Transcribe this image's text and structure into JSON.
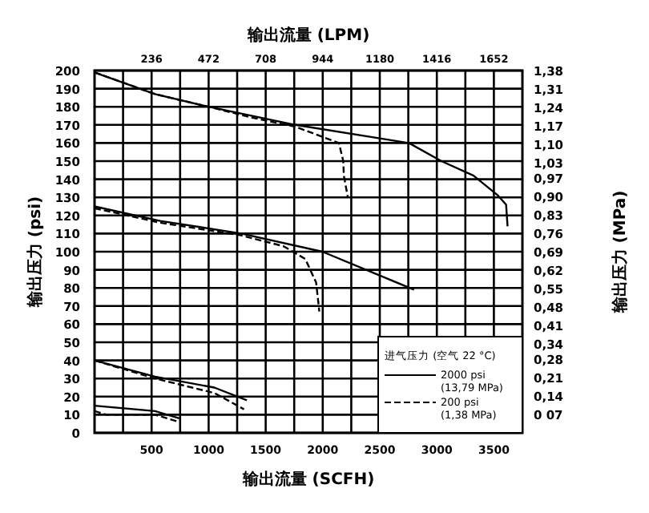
{
  "chart_data": {
    "type": "line",
    "xlabel": "输出流量 (SCFH)",
    "x2label": "输出流量 (LPM)",
    "ylabel": "输出压力 (psi)",
    "y2label": "输出压力 (MPa)",
    "legend_title": "进气压力 (空气 22 °C)",
    "legend": "bottom right",
    "grid": true,
    "xlim": [
      0,
      3750
    ],
    "xticks": [
      {
        "value": 250,
        "label": null
      },
      500,
      {
        "value": 750,
        "label": null
      },
      1000,
      {
        "value": 1250,
        "label": null
      },
      1500,
      {
        "value": 1750,
        "label": null
      },
      2000,
      {
        "value": 2250,
        "label": null
      },
      2500,
      {
        "value": 2750,
        "label": null
      },
      3000,
      {
        "value": 3250,
        "label": null
      },
      3500
    ],
    "x2lim": [
      0,
      1770
    ],
    "x2ticks": [
      236,
      472,
      708,
      944,
      1180,
      1416,
      1652
    ],
    "ylim": [
      0,
      200
    ],
    "yticks": [
      0,
      10,
      20,
      30,
      40,
      50,
      60,
      70,
      80,
      90,
      100,
      110,
      120,
      130,
      140,
      150,
      160,
      170,
      180,
      190,
      200
    ],
    "y2lim": [
      0,
      1.38
    ],
    "y2ticks": [
      {
        "value": 0.07,
        "label": "0 07"
      },
      {
        "value": 0.14,
        "label": "0,14"
      },
      {
        "value": 0.21,
        "label": "0,21"
      },
      {
        "value": 0.28,
        "label": "0,28"
      },
      {
        "value": 0.34,
        "label": "0,34"
      },
      {
        "value": 0.41,
        "label": "0,41"
      },
      {
        "value": 0.48,
        "label": "0,48"
      },
      {
        "value": 0.55,
        "label": "0,55"
      },
      {
        "value": 0.62,
        "label": "0,62"
      },
      {
        "value": 0.69,
        "label": "0,69"
      },
      {
        "value": 0.76,
        "label": "0,76"
      },
      {
        "value": 0.83,
        "label": "0,83"
      },
      {
        "value": 0.9,
        "label": "0,90"
      },
      {
        "value": 0.97,
        "label": "0,97"
      },
      {
        "value": 1.03,
        "label": "1,03"
      },
      {
        "value": 1.1,
        "label": "1,10"
      },
      {
        "value": 1.17,
        "label": "1,17"
      },
      {
        "value": 1.24,
        "label": "1,24"
      },
      {
        "value": 1.31,
        "label": "1,31"
      },
      {
        "value": 1.38,
        "label": "1,38"
      }
    ],
    "series": [
      {
        "name": "2000 psi (13,79 MPa)",
        "color": "#000000",
        "line_style": "solid",
        "x": [
          0,
          530,
          1000,
          1760,
          2755,
          3040,
          3322,
          3536,
          3607,
          3620
        ],
        "values": [
          199,
          187,
          180,
          170,
          160,
          150,
          142,
          131,
          126,
          114
        ]
      },
      {
        "name": "200 psi (1,38 MPa)",
        "color": "#000000",
        "line_style": "dashed",
        "x": [
          0,
          530,
          1000,
          1382,
          1760,
          2142,
          2180,
          2185,
          2220
        ],
        "values": [
          199,
          187,
          180,
          174,
          169,
          160,
          150,
          142,
          130
        ]
      },
      {
        "color": "#000000",
        "line_style": "solid",
        "x": [
          0,
          576,
          1286,
          1997,
          2800
        ],
        "values": [
          125,
          117,
          110,
          100,
          79
        ]
      },
      {
        "color": "#000000",
        "line_style": "dashed",
        "x": [
          0,
          576,
          1286,
          1657,
          1847,
          1942,
          1970
        ],
        "values": [
          124,
          116,
          109,
          103,
          96,
          83,
          67
        ]
      },
      {
        "color": "#000000",
        "line_style": "solid",
        "x": [
          0,
          530,
          1050,
          1335
        ],
        "values": [
          40,
          31,
          25,
          18
        ]
      },
      {
        "color": "#000000",
        "line_style": "dashed",
        "x": [
          0,
          530,
          1050,
          1310
        ],
        "values": [
          40,
          30,
          22,
          13
        ]
      },
      {
        "color": "#000000",
        "line_style": "solid",
        "x": [
          0,
          530,
          743
        ],
        "values": [
          15,
          12,
          8
        ]
      },
      {
        "color": "#000000",
        "line_style": "dashed",
        "x": [
          0,
          104,
          530,
          743
        ],
        "values": [
          12,
          10,
          10,
          6
        ]
      }
    ]
  }
}
